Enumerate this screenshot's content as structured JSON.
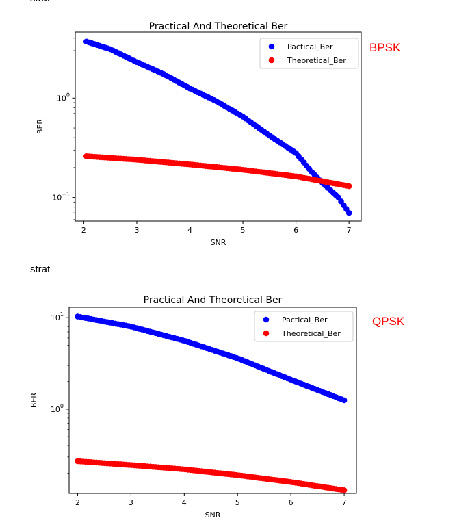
{
  "page": {
    "strat_top": "strat",
    "strat_mid": "strat"
  },
  "labels": {
    "bpsk": "BPSK",
    "qpsk": "QPSK"
  },
  "colors": {
    "practical": "#0000ff",
    "theoretical": "#ff0000",
    "annotation": "#ff0000"
  },
  "chart_data": [
    {
      "type": "scatter",
      "title": "Practical And Theoretical Ber",
      "xlabel": "SNR",
      "ylabel": "BER",
      "yscale": "log",
      "xlim": [
        1.84,
        7.23
      ],
      "ylim": [
        0.058,
        4.6
      ],
      "xticks": [
        2,
        3,
        4,
        5,
        6,
        7
      ],
      "yticks": [
        {
          "value": 1,
          "base": "10",
          "exp": "0"
        },
        {
          "value": 0.1,
          "base": "10",
          "exp": "−1"
        }
      ],
      "legend": "top-right",
      "grid": false,
      "x": {
        "start": 2.05,
        "end": 7.0,
        "count": 100
      },
      "series": [
        {
          "name": "Pactical_Ber",
          "color": "#0000ff",
          "anchors": [
            [
              2.05,
              3.7
            ],
            [
              2.5,
              3.1
            ],
            [
              3.0,
              2.3
            ],
            [
              3.5,
              1.75
            ],
            [
              4.0,
              1.25
            ],
            [
              4.5,
              0.93
            ],
            [
              5.0,
              0.65
            ],
            [
              5.5,
              0.42
            ],
            [
              6.0,
              0.28
            ],
            [
              6.3,
              0.18
            ],
            [
              6.5,
              0.14
            ],
            [
              6.8,
              0.1
            ],
            [
              7.0,
              0.07
            ]
          ]
        },
        {
          "name": "Theoretical_Ber",
          "color": "#ff0000",
          "anchors": [
            [
              2.05,
              0.26
            ],
            [
              3.0,
              0.24
            ],
            [
              4.0,
              0.215
            ],
            [
              5.0,
              0.19
            ],
            [
              6.0,
              0.163
            ],
            [
              7.0,
              0.13
            ]
          ]
        }
      ]
    },
    {
      "type": "scatter",
      "title": "Practical And Theoretical Ber",
      "xlabel": "SNR",
      "ylabel": "BER",
      "yscale": "log",
      "xlim": [
        1.84,
        7.23
      ],
      "ylim": [
        0.12,
        13
      ],
      "xticks": [
        2,
        3,
        4,
        5,
        6,
        7
      ],
      "yticks": [
        {
          "value": 10,
          "base": "10",
          "exp": "1"
        },
        {
          "value": 1,
          "base": "10",
          "exp": "0"
        }
      ],
      "legend": "top-right",
      "grid": false,
      "x": {
        "start": 2.0,
        "end": 7.0,
        "count": 100
      },
      "series": [
        {
          "name": "Pactical_Ber",
          "color": "#0000ff",
          "anchors": [
            [
              2.0,
              10.3
            ],
            [
              3.0,
              8.0
            ],
            [
              4.0,
              5.6
            ],
            [
              5.0,
              3.6
            ],
            [
              6.0,
              2.1
            ],
            [
              7.0,
              1.25
            ]
          ]
        },
        {
          "name": "Theoretical_Ber",
          "color": "#ff0000",
          "anchors": [
            [
              2.0,
              0.27
            ],
            [
              3.0,
              0.245
            ],
            [
              4.0,
              0.22
            ],
            [
              5.0,
              0.19
            ],
            [
              6.0,
              0.16
            ],
            [
              7.0,
              0.13
            ]
          ]
        }
      ]
    }
  ]
}
